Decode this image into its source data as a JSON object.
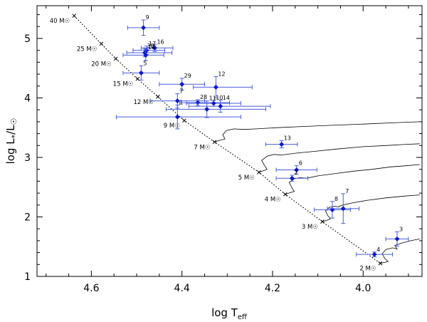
{
  "chart_data": {
    "type": "scatter",
    "title": "",
    "xlabel": "log T_eff",
    "xlabel_main": "log T",
    "xlabel_sub": "eff",
    "ylabel": "log L*/L☉",
    "ylabel_main": "log L",
    "ylabel_sub": "*",
    "ylabel_tail": "/L",
    "ylabel_sun": "☉",
    "xlim": [
      4.72,
      3.87
    ],
    "ylim": [
      1.0,
      5.55
    ],
    "x_reversed": true,
    "x_ticks": [
      4.6,
      4.4,
      4.2,
      4.0
    ],
    "x_tick_labels": [
      "4.6",
      "4.4",
      "4.2",
      "4.0"
    ],
    "y_ticks": [
      1,
      2,
      3,
      4,
      5
    ],
    "y_tick_labels": [
      "1",
      "2",
      "3",
      "4",
      "5"
    ],
    "grid": false,
    "legend": "none",
    "colors": {
      "points": "#0b18c9",
      "error_bars": "#4a5ee0",
      "zams": "#000000",
      "tracks": "#000000"
    },
    "series": [
      {
        "points": [
          {
            "label": "9",
            "x": 4.485,
            "y": 5.18,
            "xerr": [
              0.035,
              0.035
            ],
            "yerr": [
              0.13,
              0.13
            ]
          },
          {
            "label": "16",
            "x": 4.46,
            "y": 4.84,
            "xerr": [
              0.03,
              0.04
            ],
            "yerr": [
              0.06,
              0.06
            ]
          },
          {
            "label": "17",
            "x": 4.478,
            "y": 4.8,
            "xerr": [
              0.03,
              0.04
            ],
            "yerr": [
              0.07,
              0.07
            ]
          },
          {
            "label": "30",
            "x": 4.482,
            "y": 4.76,
            "xerr": [
              0.04,
              0.06
            ],
            "yerr": [
              0.07,
              0.07
            ]
          },
          {
            "label": "18",
            "x": 4.48,
            "y": 4.72,
            "xerr": [
              0.05,
              0.04
            ],
            "yerr": [
              0.09,
              0.09
            ]
          },
          {
            "label": "5",
            "x": 4.49,
            "y": 4.42,
            "xerr": [
              0.04,
              0.04
            ],
            "yerr": [
              0.12,
              0.12
            ]
          },
          {
            "label": "29",
            "x": 4.4,
            "y": 4.23,
            "xerr": [
              0.05,
              0.05
            ],
            "yerr": [
              0.1,
              0.1
            ]
          },
          {
            "label": "12",
            "x": 4.325,
            "y": 4.18,
            "xerr": [
              0.05,
              0.08
            ],
            "yerr": [
              0.18,
              0.18
            ]
          },
          {
            "label": "7",
            "x": 4.41,
            "y": 3.95,
            "xerr": [
              0.06,
              0.06
            ],
            "yerr": [
              0.12,
              0.12
            ]
          },
          {
            "label": "28",
            "x": 4.365,
            "y": 3.92,
            "xerr": [
              0.04,
              0.07
            ],
            "yerr": [
              0.05,
              0.05
            ]
          },
          {
            "label": "10",
            "x": 4.33,
            "y": 3.91,
            "xerr": [
              0.06,
              0.06
            ],
            "yerr": [
              0.05,
              0.05
            ]
          },
          {
            "label": "14",
            "x": 4.315,
            "y": 3.86,
            "xerr": [
              0.07,
              0.11
            ],
            "yerr": [
              0.1,
              0.1
            ]
          },
          {
            "label": "11",
            "x": 4.345,
            "y": 3.81,
            "xerr": [
              0.09,
              0.13
            ],
            "yerr": [
              0.14,
              0.14
            ]
          },
          {
            "label": "1",
            "x": 4.41,
            "y": 3.68,
            "xerr": [
              0.135,
              0.14
            ],
            "yerr": [
              0.2,
              0.2
            ]
          },
          {
            "label": "13",
            "x": 4.18,
            "y": 3.22,
            "xerr": [
              0.035,
              0.035
            ],
            "yerr": [
              0.06,
              0.06
            ]
          },
          {
            "label": "6",
            "x": 4.147,
            "y": 2.79,
            "xerr": [
              0.045,
              0.045
            ],
            "yerr": [
              0.07,
              0.07
            ]
          },
          {
            "label": "2",
            "x": 4.157,
            "y": 2.65,
            "xerr": [
              0.035,
              0.035
            ],
            "yerr": [
              0.05,
              0.05
            ]
          },
          {
            "label": "8",
            "x": 4.068,
            "y": 2.12,
            "xerr": [
              0.04,
              0.04
            ],
            "yerr": [
              0.14,
              0.14
            ]
          },
          {
            "label": "7",
            "x": 4.044,
            "y": 2.14,
            "xerr": [
              0.035,
              0.035
            ],
            "yerr": [
              0.25,
              0.25
            ]
          },
          {
            "label": "3",
            "x": 3.925,
            "y": 1.63,
            "xerr": [
              0.025,
              0.025
            ],
            "yerr": [
              0.12,
              0.12
            ]
          },
          {
            "label": "4",
            "x": 3.975,
            "y": 1.37,
            "xerr": [
              0.04,
              0.04
            ],
            "yerr": [
              0.04,
              0.04
            ]
          }
        ]
      }
    ],
    "zams": [
      {
        "mass": "40",
        "x": 4.638,
        "y": 5.38
      },
      {
        "mass": "25",
        "x": 4.578,
        "y": 4.91
      },
      {
        "mass": "20",
        "x": 4.546,
        "y": 4.66
      },
      {
        "mass": "15",
        "x": 4.498,
        "y": 4.32
      },
      {
        "mass": "12",
        "x": 4.453,
        "y": 4.02
      },
      {
        "mass": "9",
        "x": 4.395,
        "y": 3.62
      },
      {
        "mass": "7",
        "x": 4.328,
        "y": 3.26
      },
      {
        "mass": "5",
        "x": 4.23,
        "y": 2.75
      },
      {
        "mass": "4",
        "x": 4.172,
        "y": 2.38
      },
      {
        "mass": "3",
        "x": 4.09,
        "y": 1.92
      },
      {
        "mass": "2",
        "x": 3.962,
        "y": 1.22
      }
    ],
    "zams_label_unit": "M☉",
    "tracks": [
      {
        "mass": "2",
        "points": [
          [
            3.962,
            1.22
          ],
          [
            3.95,
            1.24
          ],
          [
            3.945,
            1.25
          ],
          [
            3.952,
            1.3
          ],
          [
            3.958,
            1.38
          ],
          [
            3.95,
            1.45
          ],
          [
            3.935,
            1.48
          ],
          [
            3.925,
            1.46
          ],
          [
            3.93,
            1.52
          ],
          [
            3.915,
            1.56
          ],
          [
            3.895,
            1.6
          ],
          [
            3.875,
            1.63
          ]
        ]
      },
      {
        "mass": "3",
        "points": [
          [
            4.09,
            1.92
          ],
          [
            4.078,
            1.95
          ],
          [
            4.072,
            1.97
          ],
          [
            4.078,
            2.02
          ],
          [
            4.083,
            2.1
          ],
          [
            4.075,
            2.16
          ],
          [
            4.063,
            2.18
          ],
          [
            4.055,
            2.17
          ],
          [
            4.045,
            2.2
          ],
          [
            4.02,
            2.24
          ],
          [
            3.99,
            2.28
          ],
          [
            3.95,
            2.32
          ],
          [
            3.91,
            2.35
          ],
          [
            3.875,
            2.37
          ]
        ]
      },
      {
        "mass": "4",
        "points": [
          [
            4.172,
            2.38
          ],
          [
            4.16,
            2.41
          ],
          [
            4.152,
            2.43
          ],
          [
            4.158,
            2.5
          ],
          [
            4.163,
            2.58
          ],
          [
            4.152,
            2.64
          ],
          [
            4.14,
            2.66
          ],
          [
            4.125,
            2.65
          ],
          [
            4.1,
            2.69
          ],
          [
            4.06,
            2.73
          ],
          [
            4.02,
            2.77
          ],
          [
            3.98,
            2.8
          ],
          [
            3.94,
            2.84
          ],
          [
            3.905,
            2.86
          ],
          [
            3.875,
            2.88
          ]
        ]
      },
      {
        "mass": "5",
        "points": [
          [
            4.23,
            2.75
          ],
          [
            4.218,
            2.78
          ],
          [
            4.212,
            2.8
          ],
          [
            4.218,
            2.87
          ],
          [
            4.224,
            2.95
          ],
          [
            4.212,
            3.02
          ],
          [
            4.197,
            3.05
          ],
          [
            4.18,
            3.04
          ],
          [
            4.15,
            3.07
          ],
          [
            4.11,
            3.1
          ],
          [
            4.06,
            3.14
          ],
          [
            4.0,
            3.18
          ],
          [
            3.95,
            3.2
          ],
          [
            3.905,
            3.22
          ],
          [
            3.875,
            3.23
          ]
        ]
      },
      {
        "mass": "7",
        "points": [
          [
            4.328,
            3.26
          ],
          [
            4.316,
            3.29
          ],
          [
            4.305,
            3.31
          ],
          [
            4.31,
            3.38
          ],
          [
            4.302,
            3.45
          ],
          [
            4.285,
            3.48
          ],
          [
            4.265,
            3.47
          ],
          [
            4.235,
            3.48
          ],
          [
            4.19,
            3.5
          ],
          [
            4.13,
            3.52
          ],
          [
            4.07,
            3.54
          ],
          [
            4.0,
            3.56
          ],
          [
            3.94,
            3.58
          ],
          [
            3.875,
            3.6
          ]
        ]
      }
    ]
  }
}
